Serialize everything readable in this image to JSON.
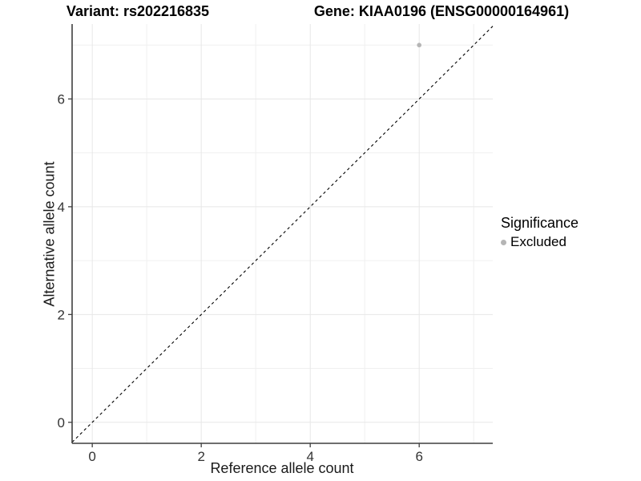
{
  "titles": {
    "variant": "Variant: rs202216835",
    "gene": "Gene: KIAA0196 (ENSG00000164961)"
  },
  "legend": {
    "title": "Significance",
    "items": [
      {
        "label": "Excluded",
        "marker": "dot"
      }
    ]
  },
  "colors": {
    "point": "#b5b5b5",
    "legend_point": "#b5b5b5",
    "grid_major": "#e7e7e7",
    "grid_minor": "#f0f0f0",
    "axis_line": "#3f3f3f",
    "tick_mark": "#3f3f3f",
    "tick_label": "#333333",
    "identity_line": "#000000"
  },
  "chart_data": {
    "type": "scatter",
    "title": "Variant: rs202216835   Gene: KIAA0196 (ENSG00000164961)",
    "xlabel": "Reference allele count",
    "ylabel": "Alternative allele count",
    "xlim": [
      -0.37,
      7.35
    ],
    "ylim": [
      -0.39,
      7.39
    ],
    "x_ticks": [
      0,
      2,
      4,
      6
    ],
    "y_ticks": [
      0,
      2,
      4,
      6
    ],
    "x_minor_ticks": [
      1,
      3,
      5,
      7
    ],
    "y_minor_ticks": [
      1,
      3,
      5,
      7
    ],
    "grid": true,
    "legend_position": "right",
    "series": [
      {
        "name": "Excluded",
        "color": "#b5b5b5",
        "points": [
          {
            "x": 6,
            "y": 7
          }
        ]
      }
    ],
    "reference_line": {
      "type": "identity",
      "slope": 1,
      "intercept": 0,
      "style": "dashed"
    }
  }
}
